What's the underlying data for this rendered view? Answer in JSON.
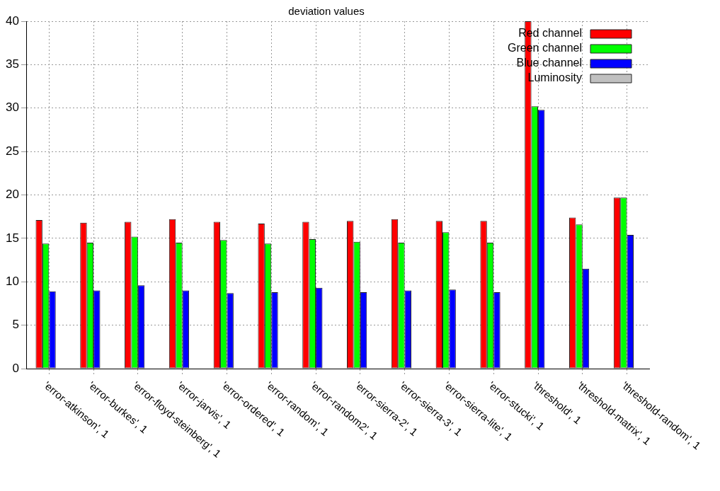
{
  "chart_data": {
    "type": "bar",
    "title": "deviation values",
    "categories": [
      "'error-atkinson', 1",
      "'error-burkes', 1",
      "'error-floyd-steinberg', 1",
      "'error-jarvis', 1",
      "'error-ordered', 1",
      "'error-random', 1",
      "'error-random2', 1",
      "'error-sierra-2', 1",
      "'error-sierra-3', 1",
      "'error-sierra-lite', 1",
      "'error-stucki', 1",
      "'threshold', 1",
      "'threshold-matrix', 1",
      "'threshold-random', 1"
    ],
    "series": [
      {
        "name": "Red channel",
        "color": "#ff0000",
        "values": [
          17.1,
          16.8,
          16.9,
          17.2,
          16.9,
          16.7,
          16.9,
          17.0,
          17.2,
          17.0,
          17.0,
          40,
          17.4,
          19.7
        ]
      },
      {
        "name": "Green channel",
        "color": "#00ff00",
        "values": [
          14.4,
          14.5,
          15.2,
          14.5,
          14.8,
          14.4,
          14.9,
          14.6,
          14.5,
          15.7,
          14.5,
          30.2,
          16.6,
          19.7
        ]
      },
      {
        "name": "Blue channel",
        "color": "#0000ff",
        "values": [
          8.9,
          9.0,
          9.6,
          9.0,
          8.7,
          8.8,
          9.3,
          8.8,
          9.0,
          9.1,
          8.8,
          29.8,
          11.5,
          15.4
        ]
      },
      {
        "name": "Luminosity",
        "color": "#c0c0c0",
        "values": [
          null,
          null,
          null,
          null,
          null,
          null,
          null,
          null,
          null,
          null,
          null,
          null,
          null,
          null
        ]
      }
    ],
    "ylim": [
      0,
      40
    ],
    "yticks": [
      0,
      5,
      10,
      15,
      20,
      25,
      30,
      35,
      40
    ],
    "grid": true,
    "legend": "top right"
  }
}
